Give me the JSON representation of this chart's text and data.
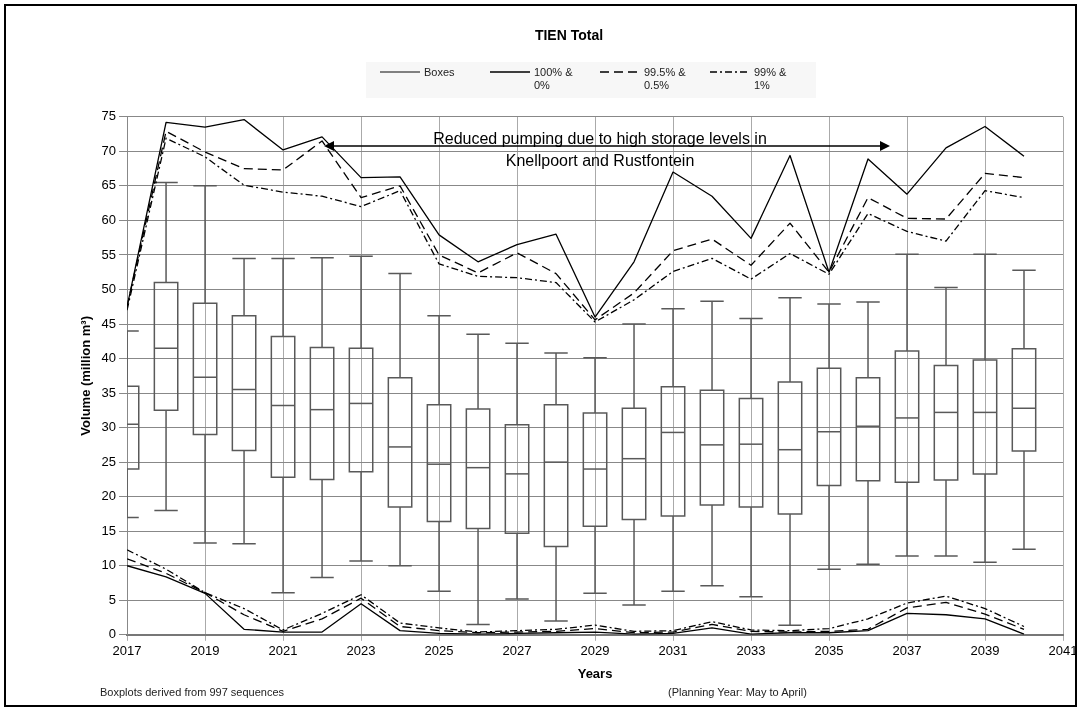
{
  "chart_data": {
    "type": "box",
    "title": "TIEN Total",
    "xlabel": "Years",
    "ylabel": "Volume (million m³)",
    "xlim": [
      2017,
      2041
    ],
    "xticks": [
      2017,
      2019,
      2021,
      2023,
      2025,
      2027,
      2029,
      2031,
      2033,
      2035,
      2037,
      2039,
      2041
    ],
    "ylim": [
      0,
      75
    ],
    "yticks": [
      0,
      5,
      10,
      15,
      20,
      25,
      30,
      35,
      40,
      45,
      50,
      55,
      60,
      65,
      70,
      75
    ],
    "grid": true,
    "legend": "top",
    "annotations": [
      "Reduced pumping due to high storage levels in Knellpoort and Rustfontein",
      "Boxplots derived from 997 sequences",
      "(Planning Year: May to April)"
    ],
    "series": [
      {
        "name": "Boxes",
        "type": "box",
        "color": "#595959",
        "x": [
          2017,
          2018,
          2019,
          2020,
          2021,
          2022,
          2023,
          2024,
          2025,
          2026,
          2027,
          2028,
          2029,
          2030,
          2031,
          2032,
          2033,
          2034,
          2035,
          2036,
          2037,
          2038,
          2039,
          2040
        ],
        "boxes": [
          {
            "low": 17,
            "q1": 24,
            "median": 30.5,
            "q3": 36,
            "high": 44
          },
          {
            "low": 18,
            "q1": 32.5,
            "median": 41.5,
            "q3": 51,
            "high": 65.5
          },
          {
            "low": 13.3,
            "q1": 29,
            "median": 37.3,
            "q3": 48,
            "high": 65
          },
          {
            "low": 13.2,
            "q1": 26.7,
            "median": 35.5,
            "q3": 46.2,
            "high": 54.5
          },
          {
            "low": 6.1,
            "q1": 22.8,
            "median": 33.2,
            "q3": 43.2,
            "high": 54.5
          },
          {
            "low": 8.3,
            "q1": 22.5,
            "median": 32.6,
            "q3": 41.6,
            "high": 54.6
          },
          {
            "low": 10.7,
            "q1": 23.6,
            "median": 33.5,
            "q3": 41.5,
            "high": 54.8
          },
          {
            "low": 10,
            "q1": 18.5,
            "median": 27.2,
            "q3": 37.2,
            "high": 52.3
          },
          {
            "low": 6.3,
            "q1": 16.4,
            "median": 24.7,
            "q3": 33.3,
            "high": 46.2
          },
          {
            "low": 1.5,
            "q1": 15.4,
            "median": 24.2,
            "q3": 32.7,
            "high": 43.5
          },
          {
            "low": 5.2,
            "q1": 14.7,
            "median": 23.3,
            "q3": 30.4,
            "high": 42.2
          },
          {
            "low": 2,
            "q1": 12.8,
            "median": 25,
            "q3": 33.3,
            "high": 40.8
          },
          {
            "low": 6,
            "q1": 15.7,
            "median": 24,
            "q3": 32.1,
            "high": 40.1
          },
          {
            "low": 4.3,
            "q1": 16.7,
            "median": 25.5,
            "q3": 32.8,
            "high": 45
          },
          {
            "low": 6.3,
            "q1": 17.2,
            "median": 29.3,
            "q3": 35.9,
            "high": 47.2
          },
          {
            "low": 7.1,
            "q1": 18.8,
            "median": 27.5,
            "q3": 35.4,
            "high": 48.3
          },
          {
            "low": 5.5,
            "q1": 18.5,
            "median": 27.6,
            "q3": 34.2,
            "high": 45.8
          },
          {
            "low": 1.4,
            "q1": 17.5,
            "median": 26.8,
            "q3": 36.6,
            "high": 48.8
          },
          {
            "low": 9.5,
            "q1": 21.6,
            "median": 29.4,
            "q3": 38.6,
            "high": 47.9
          },
          {
            "low": 10.2,
            "q1": 22.3,
            "median": 30.2,
            "q3": 37.2,
            "high": 48.2
          },
          {
            "low": 11.4,
            "q1": 22.1,
            "median": 31.4,
            "q3": 41.1,
            "high": 55.1
          },
          {
            "low": 11.4,
            "q1": 22.4,
            "median": 32.2,
            "q3": 39,
            "high": 50.3
          },
          {
            "low": 10.5,
            "q1": 23.3,
            "median": 32.2,
            "q3": 39.8,
            "high": 55.1
          },
          {
            "low": 12.4,
            "q1": 26.6,
            "median": 32.8,
            "q3": 41.4,
            "high": 52.8
          }
        ]
      },
      {
        "name": "100% & 0%",
        "type": "line",
        "color": "#000000",
        "line_style": "solid",
        "x": [
          2017,
          2018,
          2019,
          2020,
          2021,
          2022,
          2023,
          2024,
          2025,
          2026,
          2027,
          2028,
          2029,
          2030,
          2031,
          2032,
          2033,
          2034,
          2035,
          2036,
          2037,
          2038,
          2039,
          2040
        ],
        "values": [
          47.5,
          74.2,
          73.5,
          74.6,
          70.2,
          72.1,
          66.2,
          66.3,
          57.9,
          54,
          56.5,
          58,
          46,
          54,
          67,
          63.5,
          57.4,
          69.4,
          52.5,
          68.9,
          63.8,
          70.5,
          73.6,
          69.3
        ]
      },
      {
        "name": "99.5% & 0.5%",
        "type": "line",
        "color": "#000000",
        "line_style": "dashed",
        "x": [
          2017,
          2018,
          2019,
          2020,
          2021,
          2022,
          2023,
          2024,
          2025,
          2026,
          2027,
          2028,
          2029,
          2030,
          2031,
          2032,
          2033,
          2034,
          2035,
          2036,
          2037,
          2038,
          2039,
          2040
        ],
        "values": [
          47.5,
          72.9,
          69.9,
          67.5,
          67.3,
          71.5,
          63.3,
          65,
          55,
          52.4,
          55.3,
          52.3,
          45.6,
          49.5,
          55.6,
          57.3,
          53.5,
          59.6,
          52.5,
          63.3,
          60.3,
          60.2,
          66.8,
          66.2
        ]
      },
      {
        "name": "99% & 1%",
        "type": "line",
        "color": "#000000",
        "line_style": "dotted",
        "x": [
          2017,
          2018,
          2019,
          2020,
          2021,
          2022,
          2023,
          2024,
          2025,
          2026,
          2027,
          2028,
          2029,
          2030,
          2031,
          2032,
          2033,
          2034,
          2035,
          2036,
          2037,
          2038,
          2039,
          2040
        ],
        "values": [
          47,
          71.9,
          69.2,
          65.1,
          64.1,
          63.5,
          62,
          64.3,
          53.7,
          51.9,
          51.7,
          51,
          45.3,
          48.5,
          52.6,
          54.5,
          51.5,
          55.2,
          52.2,
          61,
          58.4,
          57,
          64.3,
          63.3
        ]
      },
      {
        "type": "line",
        "color": "#000000",
        "line_style": "solid",
        "x": [
          2017,
          2018,
          2019,
          2020,
          2021,
          2022,
          2023,
          2024,
          2025,
          2026,
          2027,
          2028,
          2029,
          2030,
          2031,
          2032,
          2033,
          2034,
          2035,
          2036,
          2037,
          2038,
          2039,
          2040
        ],
        "values": [
          10,
          8.4,
          6,
          0.8,
          0.4,
          0.4,
          4.5,
          0.6,
          0.2,
          0.1,
          0.2,
          0.3,
          0.4,
          0.1,
          0.2,
          1,
          0.1,
          0.3,
          0.3,
          0.6,
          3.1,
          2.9,
          2.3,
          0.1
        ]
      },
      {
        "type": "line",
        "color": "#000000",
        "line_style": "dashed",
        "x": [
          2017,
          2018,
          2019,
          2020,
          2021,
          2022,
          2023,
          2024,
          2025,
          2026,
          2027,
          2028,
          2029,
          2030,
          2031,
          2032,
          2033,
          2034,
          2035,
          2036,
          2037,
          2038,
          2039,
          2040
        ],
        "values": [
          11,
          8.9,
          6.1,
          2.9,
          0.5,
          2.3,
          5.3,
          1.2,
          0.6,
          0.3,
          0.4,
          0.5,
          0.9,
          0.3,
          0.4,
          1.5,
          0.5,
          0.4,
          0.5,
          0.8,
          3.9,
          4.7,
          3,
          0.8
        ]
      },
      {
        "type": "line",
        "color": "#000000",
        "line_style": "dotted",
        "x": [
          2017,
          2018,
          2019,
          2020,
          2021,
          2022,
          2023,
          2024,
          2025,
          2026,
          2027,
          2028,
          2029,
          2030,
          2031,
          2032,
          2033,
          2034,
          2035,
          2036,
          2037,
          2038,
          2039,
          2040
        ],
        "values": [
          12.3,
          9.5,
          6.1,
          3.8,
          0.7,
          3.1,
          5.8,
          1.7,
          1,
          0.4,
          0.6,
          0.8,
          1.4,
          0.5,
          0.6,
          1.9,
          0.7,
          0.6,
          0.9,
          2.3,
          4.6,
          5.6,
          3.8,
          1.2
        ]
      }
    ]
  }
}
